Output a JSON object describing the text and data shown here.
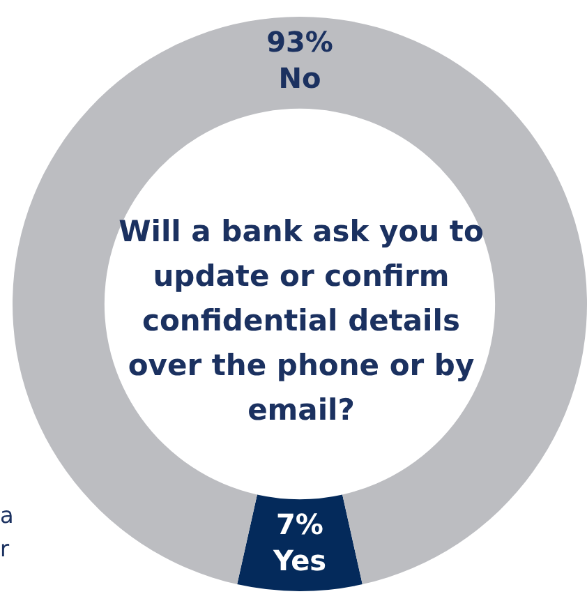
{
  "chart_data": {
    "type": "donut",
    "title": "Will a bank ask you to update or confirm confidential details over the phone or by email?",
    "categories": [
      "Yes",
      "No"
    ],
    "values": [
      7,
      93
    ],
    "colors": [
      "#042a5b",
      "#bcbdc1"
    ],
    "value_labels": [
      "7%",
      "93%"
    ],
    "annotations": [
      "a",
      "r"
    ],
    "legend": false
  }
}
